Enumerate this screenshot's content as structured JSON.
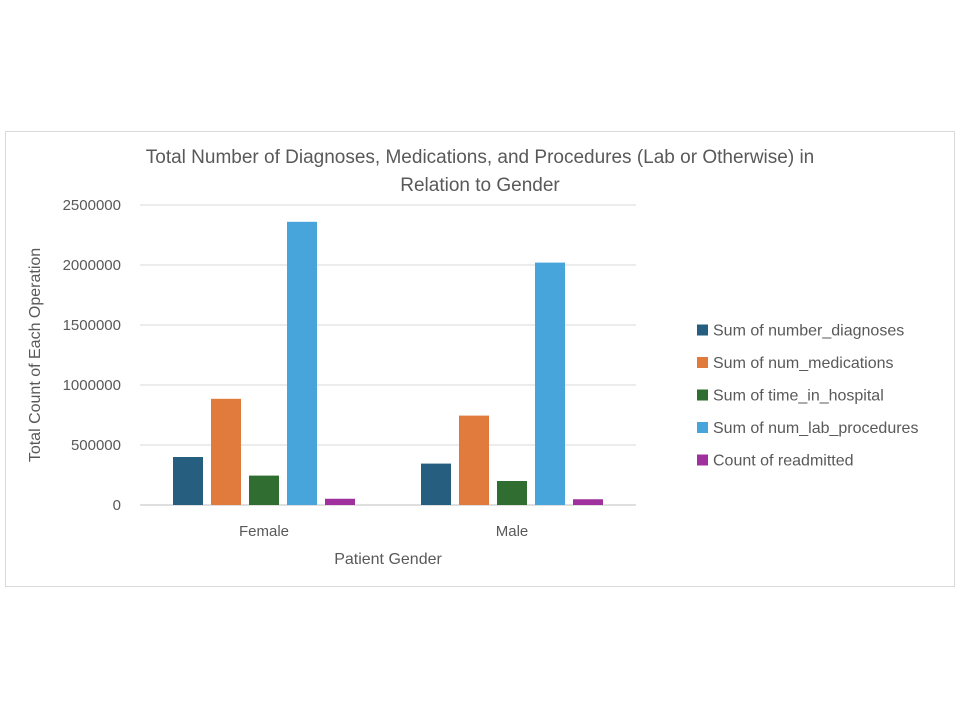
{
  "chart_data": {
    "type": "bar",
    "title_lines": [
      "Total Number of Diagnoses, Medications, and Procedures (Lab or Otherwise) in",
      "Relation to Gender"
    ],
    "xlabel": "Patient Gender",
    "ylabel": "Total Count of Each Operation",
    "categories": [
      "Female",
      "Male"
    ],
    "ylim": [
      0,
      2500000
    ],
    "yticks": [
      0,
      500000,
      1000000,
      1500000,
      2000000,
      2500000
    ],
    "ytick_labels": [
      "0",
      "500000",
      "1000000",
      "1500000",
      "2000000",
      "2500000"
    ],
    "grid": true,
    "legend_position": "right",
    "series": [
      {
        "name": "Sum of number_diagnoses",
        "color": "#255e7e",
        "values": [
          400000,
          345000
        ]
      },
      {
        "name": "Sum of num_medications",
        "color": "#e07a3d",
        "values": [
          885000,
          745000
        ]
      },
      {
        "name": "Sum of time_in_hospital",
        "color": "#2f6e30",
        "values": [
          245000,
          200000
        ]
      },
      {
        "name": "Sum of num_lab_procedures",
        "color": "#48a5db",
        "values": [
          2360000,
          2020000
        ]
      },
      {
        "name": "Count of readmitted",
        "color": "#a0309e",
        "values": [
          52000,
          48000
        ]
      }
    ]
  }
}
